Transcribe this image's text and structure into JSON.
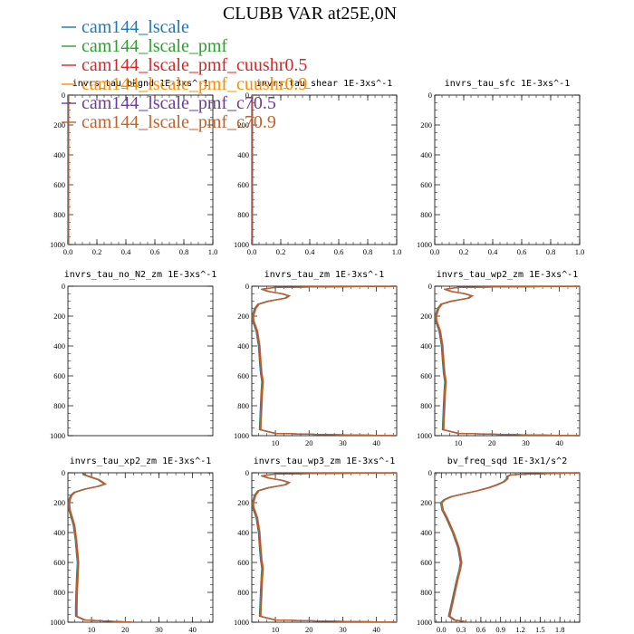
{
  "figure": {
    "title": "CLUBB VAR at25E,0N"
  },
  "legend": [
    {
      "name": "cam144_lscale",
      "color": "#1f77b4"
    },
    {
      "name": "cam144_lscale_pmf",
      "color": "#2ca02c"
    },
    {
      "name": "cam144_lscale_pmf_cuushr0.5",
      "color": "#d62728"
    },
    {
      "name": "cam144_lscale_pmf_cuushr0.9",
      "color": "#ff8c00"
    },
    {
      "name": "cam144_lscale_pmf_c70.5",
      "color": "#6a3d9a"
    },
    {
      "name": "cam144_lscale_pmf_c70.9",
      "color": "#c0622c"
    }
  ],
  "chart_data": [
    {
      "type": "line",
      "title": "invrs_tau_bkgnd   1E-3xs^-1",
      "xlim": [
        0,
        1
      ],
      "ylim": [
        1000,
        0
      ],
      "xticks": [
        "0.0",
        "0.2",
        "0.4",
        "0.6",
        "0.8",
        "1.0"
      ],
      "xtick_values": [
        0,
        0.2,
        0.4,
        0.6,
        0.8,
        1.0
      ],
      "yticks": [
        0,
        200,
        400,
        600,
        800,
        1000
      ],
      "profile": {
        "p": [
          0,
          1000
        ],
        "x": [
          0,
          0
        ]
      }
    },
    {
      "type": "line",
      "title": "invrs_tau_shear   1E-3xs^-1",
      "xlim": [
        0,
        1
      ],
      "ylim": [
        1000,
        0
      ],
      "xticks": [
        "0.0",
        "0.2",
        "0.4",
        "0.6",
        "0.8",
        "1.0"
      ],
      "xtick_values": [
        0,
        0.2,
        0.4,
        0.6,
        0.8,
        1.0
      ],
      "yticks": [
        0,
        200,
        400,
        600,
        800,
        1000
      ],
      "profile": {
        "p": [
          0,
          1000
        ],
        "x": [
          0,
          0
        ]
      }
    },
    {
      "type": "line",
      "title": "invrs_tau_sfc   1E-3xs^-1",
      "xlim": [
        0,
        1
      ],
      "ylim": [
        1000,
        0
      ],
      "xticks": [
        "0.0",
        "0.2",
        "0.4",
        "0.6",
        "0.8",
        "1.0"
      ],
      "xtick_values": [
        0,
        0.2,
        0.4,
        0.6,
        0.8,
        1.0
      ],
      "yticks": [
        0,
        200,
        400,
        600,
        800,
        1000
      ],
      "profile": {
        "p": [],
        "x": []
      }
    },
    {
      "type": "line",
      "title": "invrs_tau_no_N2_zm   1E-3xs^-1",
      "xlim": [
        0,
        1
      ],
      "ylim": [
        1000,
        0
      ],
      "xticks": [],
      "xtick_values": [],
      "yticks": [
        0,
        200,
        400,
        600,
        800,
        1000
      ],
      "profile": {
        "p": [],
        "x": []
      }
    },
    {
      "type": "line",
      "title": "invrs_tau_zm   1E-3xs^-1",
      "xlim": [
        3,
        46
      ],
      "ylim": [
        1000,
        0
      ],
      "xticks": [
        "10",
        "20",
        "30",
        "40"
      ],
      "xtick_values": [
        10,
        20,
        30,
        40
      ],
      "yticks": [
        0,
        200,
        400,
        600,
        800,
        1000
      ],
      "profile": {
        "p": [
          0,
          8,
          20,
          35,
          50,
          65,
          80,
          100,
          120,
          150,
          180,
          200,
          230,
          300,
          400,
          500,
          580,
          640,
          700,
          800,
          900,
          960,
          985,
          993,
          1000
        ],
        "x": [
          46,
          10,
          6,
          8,
          12,
          14,
          13,
          8,
          5,
          4,
          3.6,
          3.3,
          3.4,
          4.5,
          5.2,
          5.5,
          5.8,
          6.2,
          6.0,
          5.8,
          5.6,
          5.5,
          10,
          25,
          46
        ]
      }
    },
    {
      "type": "line",
      "title": "invrs_tau_wp2_zm   1E-3xs^-1",
      "xlim": [
        3,
        46
      ],
      "ylim": [
        1000,
        0
      ],
      "xticks": [
        "10",
        "20",
        "30",
        "40"
      ],
      "xtick_values": [
        10,
        20,
        30,
        40
      ],
      "yticks": [
        0,
        200,
        400,
        600,
        800,
        1000
      ],
      "profile": {
        "p": [
          0,
          8,
          20,
          35,
          50,
          65,
          80,
          100,
          120,
          150,
          180,
          200,
          230,
          300,
          400,
          500,
          580,
          640,
          700,
          800,
          900,
          960,
          985,
          993,
          1000
        ],
        "x": [
          46,
          10,
          6,
          8,
          12,
          14,
          13,
          8,
          5,
          4,
          3.6,
          3.3,
          3.4,
          4.5,
          5.2,
          5.5,
          5.8,
          6.2,
          6.0,
          5.8,
          5.6,
          5.5,
          10,
          25,
          46
        ]
      }
    },
    {
      "type": "line",
      "title": "invrs_tau_xp2_zm   1E-3xs^-1",
      "xlim": [
        3,
        46
      ],
      "ylim": [
        1000,
        0
      ],
      "xticks": [
        "10",
        "20",
        "30",
        "40"
      ],
      "xtick_values": [
        10,
        20,
        30,
        40
      ],
      "yticks": [
        0,
        200,
        400,
        600,
        800,
        1000
      ],
      "profile": {
        "p": [
          0,
          15,
          30,
          45,
          60,
          75,
          90,
          110,
          130,
          150,
          180,
          210,
          250,
          350,
          450,
          550,
          600,
          700,
          800,
          900,
          960,
          985,
          993,
          1000
        ],
        "x": [
          8,
          8,
          10,
          12,
          13,
          14,
          12,
          8,
          5,
          4,
          3.5,
          3.3,
          3.5,
          4.8,
          5.4,
          5.8,
          6.0,
          5.8,
          5.6,
          5.5,
          5.5,
          8,
          15,
          22
        ]
      }
    },
    {
      "type": "line",
      "title": "invrs_tau_wp3_zm   1E-3xs^-1",
      "xlim": [
        3,
        46
      ],
      "ylim": [
        1000,
        0
      ],
      "xticks": [
        "10",
        "20",
        "30",
        "40"
      ],
      "xtick_values": [
        10,
        20,
        30,
        40
      ],
      "yticks": [
        0,
        200,
        400,
        600,
        800,
        1000
      ],
      "profile": {
        "p": [
          0,
          8,
          20,
          35,
          50,
          65,
          80,
          100,
          120,
          150,
          180,
          200,
          230,
          300,
          400,
          500,
          580,
          640,
          700,
          800,
          900,
          960,
          985,
          993,
          1000
        ],
        "x": [
          46,
          10,
          6,
          8,
          12,
          14,
          13,
          8,
          5,
          4,
          3.6,
          3.3,
          3.4,
          4.5,
          5.2,
          5.5,
          5.8,
          6.2,
          6.0,
          5.8,
          5.6,
          5.5,
          10,
          25,
          46
        ]
      }
    },
    {
      "type": "line",
      "title": "bv_freq_sqd   1E-3x1/s^2",
      "xlim": [
        -0.1,
        2.1
      ],
      "ylim": [
        1000,
        0
      ],
      "xticks": [
        "0.0",
        "0.3",
        "0.6",
        "0.9",
        "1.2",
        "1.5",
        "1.8"
      ],
      "xtick_values": [
        0,
        0.3,
        0.6,
        0.9,
        1.2,
        1.5,
        1.8
      ],
      "yticks": [
        0,
        200,
        400,
        600,
        800,
        1000
      ],
      "profile": {
        "p": [
          0,
          10,
          15,
          25,
          40,
          60,
          80,
          100,
          120,
          140,
          160,
          180,
          200,
          250,
          300,
          400,
          500,
          600,
          650,
          700,
          800,
          900,
          960,
          985,
          995,
          1000
        ],
        "x": [
          2.1,
          1.2,
          1.05,
          1.0,
          1.0,
          0.95,
          0.85,
          0.72,
          0.55,
          0.35,
          0.15,
          0.05,
          0.0,
          0.02,
          0.08,
          0.18,
          0.26,
          0.3,
          0.28,
          0.25,
          0.2,
          0.15,
          0.12,
          0.2,
          0.35,
          0.35
        ]
      }
    }
  ]
}
